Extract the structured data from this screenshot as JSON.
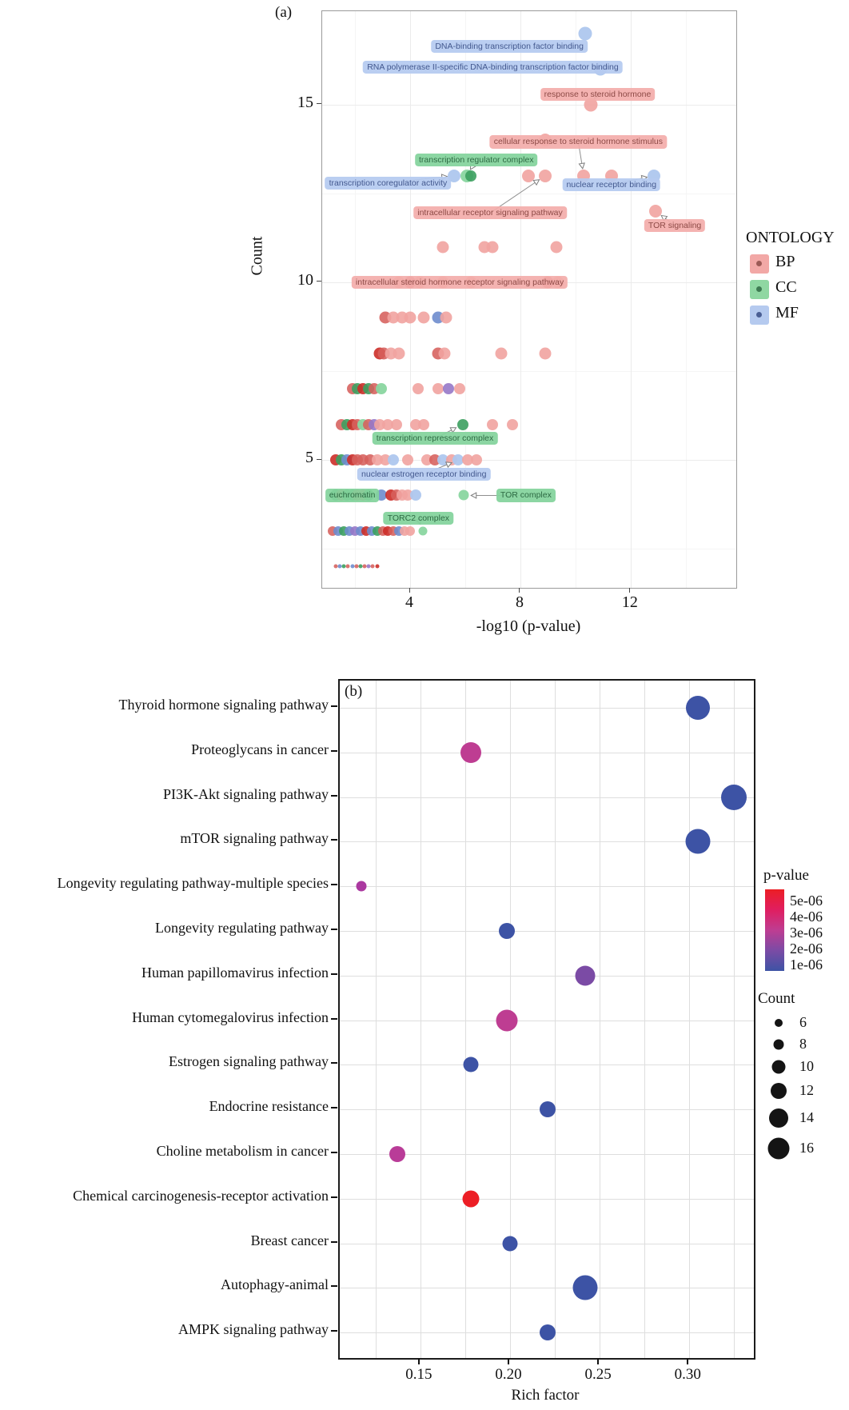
{
  "chart_data": [
    {
      "type": "scatter",
      "tag": "(a)",
      "xlabel": "-log10 (p-value)",
      "ylabel": "Count",
      "x_ticks": [
        4,
        8,
        12
      ],
      "x_minor_ticks": [
        2,
        6,
        10,
        14
      ],
      "y_ticks": [
        5,
        10,
        15
      ],
      "y_minor_ticks": [
        2.5,
        7.5,
        12.5
      ],
      "xlim": [
        0.81,
        15.83
      ],
      "ylim": [
        1.4,
        17.63
      ],
      "legend": {
        "title": "ONTOLOGY",
        "items": [
          {
            "label": "BP",
            "color": "#F2A8A6",
            "dot": "#9C5A56"
          },
          {
            "label": "CC",
            "color": "#8FD7A2",
            "dot": "#3E7A52"
          },
          {
            "label": "MF",
            "color": "#B5CAEF",
            "dot": "#4A5F94"
          }
        ]
      },
      "point_colors": {
        "bp": "rgba(241,163,160,0.9)",
        "bpD": "rgba(214,96,92,0.88)",
        "red": "rgba(204,45,40,0.9)",
        "cc": "rgba(138,214,160,0.95)",
        "ccD": "rgba(60,160,95,0.9)",
        "mf": "rgba(174,199,238,0.95)",
        "mfD": "rgba(110,140,205,0.9)",
        "pur": "rgba(150,120,200,0.9)"
      },
      "points": [
        [
          10.35,
          17,
          "mf",
          17
        ],
        [
          10.9,
          16,
          "mf",
          17
        ],
        [
          10.55,
          15,
          "bp",
          17
        ],
        [
          8.9,
          14,
          "bp",
          16
        ],
        [
          5.6,
          13,
          "mf",
          16
        ],
        [
          6.05,
          13,
          "cc",
          16
        ],
        [
          6.2,
          13,
          "ccD",
          14
        ],
        [
          8.3,
          13,
          "bp",
          16
        ],
        [
          8.9,
          13,
          "bp",
          16
        ],
        [
          10.3,
          13,
          "bp",
          16
        ],
        [
          11.3,
          13,
          "bp",
          16
        ],
        [
          12.85,
          13,
          "mf",
          16
        ],
        [
          12.9,
          12,
          "bp",
          16
        ],
        [
          5.2,
          11,
          "bp",
          15
        ],
        [
          6.7,
          11,
          "bp",
          15
        ],
        [
          7.0,
          11,
          "bp",
          15
        ],
        [
          9.3,
          11,
          "bp",
          15
        ],
        [
          3.6,
          10,
          "bp",
          15
        ],
        [
          4.0,
          10,
          "bpD",
          15
        ],
        [
          4.35,
          10,
          "bp",
          15
        ],
        [
          5.2,
          10,
          "bp",
          15
        ],
        [
          6.2,
          10,
          "bp",
          15
        ],
        [
          9.0,
          10,
          "bpD",
          15
        ],
        [
          9.35,
          10,
          "bp",
          15
        ],
        [
          3.1,
          9,
          "bpD",
          15
        ],
        [
          3.4,
          9,
          "bp",
          15
        ],
        [
          3.7,
          9,
          "bp",
          15
        ],
        [
          4.0,
          9,
          "bp",
          15
        ],
        [
          4.5,
          9,
          "bp",
          15
        ],
        [
          5.0,
          9,
          "mfD",
          15
        ],
        [
          5.3,
          9,
          "bp",
          15
        ],
        [
          2.9,
          8,
          "red",
          15
        ],
        [
          3.05,
          8,
          "bpD",
          15
        ],
        [
          3.3,
          8,
          "bp",
          15
        ],
        [
          3.6,
          8,
          "bp",
          15
        ],
        [
          5.0,
          8,
          "bpD",
          15
        ],
        [
          5.25,
          8,
          "bp",
          15
        ],
        [
          7.3,
          8,
          "bp",
          15
        ],
        [
          8.9,
          8,
          "bp",
          15
        ],
        [
          1.9,
          7,
          "bpD",
          14
        ],
        [
          2.1,
          7,
          "ccD",
          14
        ],
        [
          2.3,
          7,
          "red",
          14
        ],
        [
          2.5,
          7,
          "ccD",
          14
        ],
        [
          2.7,
          7,
          "bpD",
          14
        ],
        [
          2.95,
          7,
          "cc",
          14
        ],
        [
          4.3,
          7,
          "bp",
          14
        ],
        [
          5.0,
          7,
          "bp",
          14
        ],
        [
          5.4,
          7,
          "pur",
          14
        ],
        [
          5.8,
          7,
          "bp",
          14
        ],
        [
          1.5,
          6,
          "bpD",
          14
        ],
        [
          1.7,
          6,
          "ccD",
          14
        ],
        [
          1.9,
          6,
          "red",
          14
        ],
        [
          2.1,
          6,
          "bpD",
          14
        ],
        [
          2.3,
          6,
          "cc",
          14
        ],
        [
          2.5,
          6,
          "bpD",
          14
        ],
        [
          2.7,
          6,
          "pur",
          14
        ],
        [
          2.9,
          6,
          "bp",
          14
        ],
        [
          3.2,
          6,
          "bp",
          14
        ],
        [
          3.5,
          6,
          "bp",
          14
        ],
        [
          4.2,
          6,
          "bp",
          14
        ],
        [
          4.5,
          6,
          "bp",
          14
        ],
        [
          5.9,
          6,
          "ccD",
          14
        ],
        [
          7.0,
          6,
          "bp",
          14
        ],
        [
          7.7,
          6,
          "bp",
          14
        ],
        [
          1.3,
          5,
          "red",
          14
        ],
        [
          1.5,
          5,
          "ccD",
          14
        ],
        [
          1.7,
          5,
          "mfD",
          14
        ],
        [
          1.9,
          5,
          "red",
          14
        ],
        [
          2.1,
          5,
          "bpD",
          14
        ],
        [
          2.3,
          5,
          "bpD",
          14
        ],
        [
          2.55,
          5,
          "bpD",
          14
        ],
        [
          2.8,
          5,
          "bp",
          14
        ],
        [
          3.1,
          5,
          "bp",
          14
        ],
        [
          3.4,
          5,
          "mf",
          14
        ],
        [
          3.9,
          5,
          "bp",
          14
        ],
        [
          4.6,
          5,
          "bp",
          14
        ],
        [
          4.9,
          5,
          "bpD",
          14
        ],
        [
          5.2,
          5,
          "mf",
          14
        ],
        [
          5.5,
          5,
          "bp",
          14
        ],
        [
          5.75,
          5,
          "mf",
          14
        ],
        [
          6.1,
          5,
          "bp",
          14
        ],
        [
          6.4,
          5,
          "bp",
          14
        ],
        [
          1.3,
          4,
          "ccD",
          14
        ],
        [
          1.5,
          4,
          "bpD",
          14
        ],
        [
          1.7,
          4,
          "ccD",
          14
        ],
        [
          1.9,
          4,
          "ccD",
          14
        ],
        [
          2.1,
          4,
          "bpD",
          14
        ],
        [
          2.3,
          4,
          "bpD",
          14
        ],
        [
          2.5,
          4,
          "ccD",
          14
        ],
        [
          2.95,
          4,
          "mfD",
          14
        ],
        [
          3.3,
          4,
          "red",
          14
        ],
        [
          3.5,
          4,
          "bpD",
          14
        ],
        [
          3.7,
          4,
          "bp",
          14
        ],
        [
          3.9,
          4,
          "bp",
          14
        ],
        [
          4.2,
          4,
          "mf",
          14
        ],
        [
          5.95,
          4,
          "cc",
          13
        ],
        [
          1.2,
          3,
          "bpD",
          12
        ],
        [
          1.4,
          3,
          "mfD",
          12
        ],
        [
          1.6,
          3,
          "ccD",
          12
        ],
        [
          1.8,
          3,
          "mfD",
          12
        ],
        [
          2.0,
          3,
          "pur",
          12
        ],
        [
          2.2,
          3,
          "mfD",
          12
        ],
        [
          2.4,
          3,
          "red",
          12
        ],
        [
          2.6,
          3,
          "mfD",
          12
        ],
        [
          2.8,
          3,
          "ccD",
          12
        ],
        [
          3.0,
          3,
          "bpD",
          12
        ],
        [
          3.2,
          3,
          "red",
          12
        ],
        [
          3.4,
          3,
          "bpD",
          12
        ],
        [
          3.6,
          3,
          "mfD",
          12
        ],
        [
          3.8,
          3,
          "bp",
          12
        ],
        [
          4.0,
          3,
          "bp",
          12
        ],
        [
          4.45,
          3,
          "cc",
          11
        ],
        [
          1.3,
          2,
          "bpD",
          5
        ],
        [
          1.45,
          2,
          "mfD",
          5
        ],
        [
          1.6,
          2,
          "ccD",
          5
        ],
        [
          1.75,
          2,
          "bpD",
          5
        ],
        [
          1.9,
          2,
          "mfD",
          5
        ],
        [
          2.05,
          2,
          "bpD",
          5
        ],
        [
          2.2,
          2,
          "ccD",
          5
        ],
        [
          2.35,
          2,
          "bpD",
          5
        ],
        [
          2.5,
          2,
          "pur",
          5
        ],
        [
          2.65,
          2,
          "bpD",
          5
        ],
        [
          2.8,
          2,
          "red",
          5
        ]
      ],
      "annotations": [
        {
          "text": "DNA-binding transcription factor binding",
          "ontology": "MF",
          "x": 7.6,
          "y": 16.65,
          "arrow": null
        },
        {
          "text": "RNA polymerase II-specific DNA-binding transcription factor binding",
          "ontology": "MF",
          "x": 7.0,
          "y": 16.05,
          "arrow": null
        },
        {
          "text": "response to steroid hormone",
          "ontology": "BP",
          "x": 10.8,
          "y": 15.3,
          "arrow": [
            10.55,
            15
          ]
        },
        {
          "text": "cellular response to steroid hormone stimulus",
          "ontology": "BP",
          "x": 10.1,
          "y": 13.95,
          "arrow": [
            10.3,
            13
          ]
        },
        {
          "text": "transcription regulator complex",
          "ontology": "CC",
          "x": 6.4,
          "y": 13.45,
          "arrow": [
            6.05,
            13
          ]
        },
        {
          "text": "transcription coregulator activity",
          "ontology": "MF",
          "x": 3.2,
          "y": 12.8,
          "arrow": [
            5.6,
            13
          ]
        },
        {
          "text": "nuclear receptor binding",
          "ontology": "MF",
          "x": 11.3,
          "y": 12.75,
          "arrow": [
            12.85,
            13
          ]
        },
        {
          "text": "intracellular receptor signaling pathway",
          "ontology": "BP",
          "x": 6.9,
          "y": 11.95,
          "arrow": [
            8.9,
            13
          ]
        },
        {
          "text": "TOR signaling",
          "ontology": "BP",
          "x": 13.6,
          "y": 11.6,
          "arrow": [
            12.9,
            12
          ]
        },
        {
          "text": "intracellular steroid hormone receptor signaling pathway",
          "ontology": "BP",
          "x": 5.8,
          "y": 10.0,
          "arrow": null
        },
        {
          "text": "transcription repressor complex",
          "ontology": "CC",
          "x": 4.9,
          "y": 5.6,
          "arrow": [
            5.9,
            6
          ]
        },
        {
          "text": "nuclear estrogen receptor binding",
          "ontology": "MF",
          "x": 4.5,
          "y": 4.6,
          "arrow": [
            5.75,
            5
          ]
        },
        {
          "text": "euchromatin",
          "ontology": "CC",
          "x": 1.9,
          "y": 4.0,
          "arrow": [
            2.95,
            4
          ]
        },
        {
          "text": "TOR complex",
          "ontology": "CC",
          "x": 8.2,
          "y": 4.0,
          "arrow": [
            5.95,
            4
          ]
        },
        {
          "text": "TORC2 complex",
          "ontology": "CC",
          "x": 4.3,
          "y": 3.35,
          "arrow": [
            4.45,
            3
          ]
        }
      ]
    },
    {
      "type": "bubble",
      "tag": "(b)",
      "xlabel": "Rich factor",
      "x_ticks": [
        0.15,
        0.2,
        0.25,
        0.3
      ],
      "x_tick_labels": [
        "0.15",
        "0.20",
        "0.25",
        "0.30"
      ],
      "xlim": [
        0.105,
        0.336
      ],
      "grid_x_start": 0.125,
      "grid_x_step": 0.025,
      "rows": [
        {
          "pathway": "Thyroid hormone signaling pathway",
          "rich_factor": 0.305,
          "count": 14,
          "color": "#3D53A5",
          "diameter": 30
        },
        {
          "pathway": "Proteoglycans in cancer",
          "rich_factor": 0.178,
          "count": 12,
          "color": "#BE3D92",
          "diameter": 26
        },
        {
          "pathway": "PI3K-Akt signaling pathway",
          "rich_factor": 0.325,
          "count": 16,
          "color": "#3D53A5",
          "diameter": 32
        },
        {
          "pathway": "mTOR signaling pathway",
          "rich_factor": 0.305,
          "count": 15,
          "color": "#3D53A5",
          "diameter": 31
        },
        {
          "pathway": "Longevity regulating pathway-multiple species",
          "rich_factor": 0.117,
          "count": 6,
          "color": "#AB39A0",
          "diameter": 13
        },
        {
          "pathway": "Longevity regulating pathway",
          "rich_factor": 0.198,
          "count": 8,
          "color": "#3D53A5",
          "diameter": 20
        },
        {
          "pathway": "Human papillomavirus infection",
          "rich_factor": 0.242,
          "count": 11,
          "color": "#7B4BA5",
          "diameter": 25
        },
        {
          "pathway": "Human cytomegalovirus infection",
          "rich_factor": 0.198,
          "count": 12,
          "color": "#BE3D92",
          "diameter": 27
        },
        {
          "pathway": "Estrogen signaling pathway",
          "rich_factor": 0.178,
          "count": 8,
          "color": "#3D53A5",
          "diameter": 19
        },
        {
          "pathway": "Endocrine resistance",
          "rich_factor": 0.221,
          "count": 8,
          "color": "#3D53A5",
          "diameter": 20
        },
        {
          "pathway": "Choline metabolism in cancer",
          "rich_factor": 0.137,
          "count": 8,
          "color": "#B93C98",
          "diameter": 20
        },
        {
          "pathway": "Chemical carcinogenesis-receptor activation",
          "rich_factor": 0.178,
          "count": 9,
          "color": "#EC1E25",
          "diameter": 21
        },
        {
          "pathway": "Breast cancer",
          "rich_factor": 0.2,
          "count": 8,
          "color": "#3D53A5",
          "diameter": 19
        },
        {
          "pathway": "Autophagy-animal",
          "rich_factor": 0.242,
          "count": 16,
          "color": "#3D53A5",
          "diameter": 31
        },
        {
          "pathway": "AMPK signaling pathway",
          "rich_factor": 0.221,
          "count": 9,
          "color": "#3D53A5",
          "diameter": 20
        }
      ],
      "legend_pvalue": {
        "title": "p-value",
        "tick_labels": [
          "5e-06",
          "4e-06",
          "3e-06",
          "2e-06",
          "1e-06"
        ],
        "gradient": [
          "#EC1E25",
          "#E01E60",
          "#BE3D92",
          "#7B4BA5",
          "#3D53A5"
        ]
      },
      "legend_count": {
        "title": "Count",
        "items": [
          {
            "label": "6",
            "d": 10
          },
          {
            "label": "8",
            "d": 13
          },
          {
            "label": "10",
            "d": 17
          },
          {
            "label": "12",
            "d": 20
          },
          {
            "label": "14",
            "d": 24
          },
          {
            "label": "16",
            "d": 27
          }
        ]
      }
    }
  ]
}
